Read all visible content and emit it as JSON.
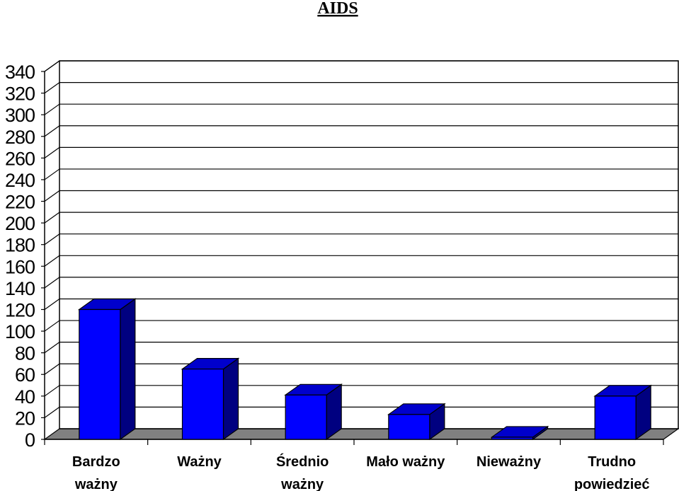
{
  "chart_data": {
    "type": "bar",
    "title": "AIDS",
    "categories": [
      [
        "Bardzo",
        "ważny"
      ],
      [
        "Ważny"
      ],
      [
        "Średnio",
        "ważny"
      ],
      [
        "Mało ważny"
      ],
      [
        "Nieważny"
      ],
      [
        "Trudno",
        "powiedzieć"
      ]
    ],
    "values": [
      120,
      65,
      41,
      23,
      2,
      40
    ],
    "ylim": [
      0,
      340
    ],
    "yticks": [
      0,
      20,
      40,
      60,
      80,
      100,
      120,
      140,
      160,
      180,
      200,
      220,
      240,
      260,
      280,
      300,
      320,
      340
    ],
    "grid": true,
    "three_d": true,
    "colors": {
      "bar_front": "#0000ff",
      "bar_top": "#0000cc",
      "bar_side": "#000080",
      "floor": "#808080",
      "grid": "#000000"
    }
  }
}
